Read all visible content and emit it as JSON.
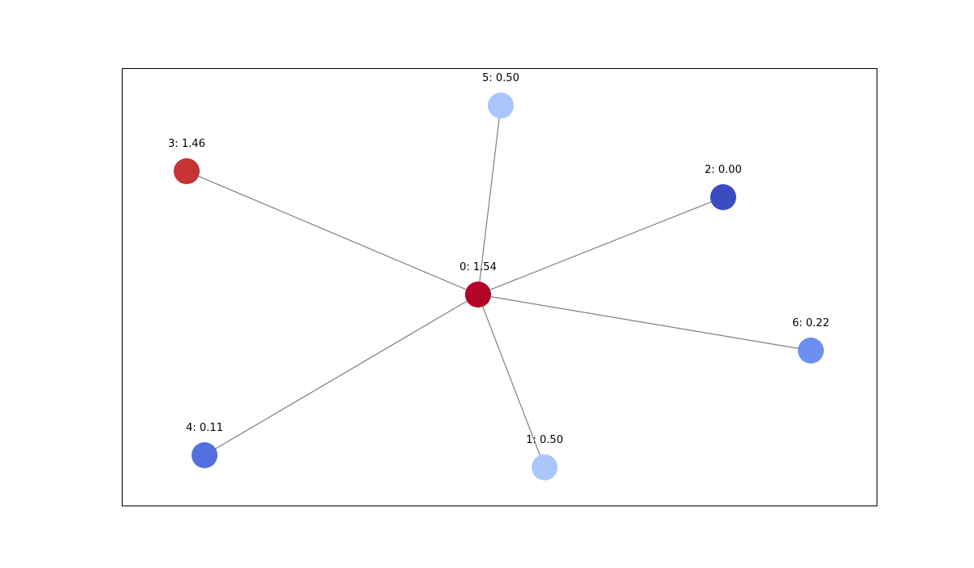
{
  "graph": {
    "nodes": [
      {
        "id": 0,
        "label": "0: 1.54",
        "value": 1.54,
        "color": "#b40426"
      },
      {
        "id": 1,
        "label": "1: 0.50",
        "value": 0.5,
        "color": "#aac7fd"
      },
      {
        "id": 2,
        "label": "2: 0.00",
        "value": 0.0,
        "color": "#3b4cc0"
      },
      {
        "id": 3,
        "label": "3: 1.46",
        "value": 1.46,
        "color": "#c53334"
      },
      {
        "id": 4,
        "label": "4: 0.11",
        "value": 0.11,
        "color": "#5470de"
      },
      {
        "id": 5,
        "label": "5: 0.50",
        "value": 0.5,
        "color": "#aac7fd"
      },
      {
        "id": 6,
        "label": "6: 0.22",
        "value": 0.22,
        "color": "#6c8ff1"
      }
    ],
    "edges": [
      {
        "source": 0,
        "target": 1
      },
      {
        "source": 0,
        "target": 2
      },
      {
        "source": 0,
        "target": 3
      },
      {
        "source": 0,
        "target": 4
      },
      {
        "source": 0,
        "target": 5
      },
      {
        "source": 0,
        "target": 6
      }
    ],
    "edge_color": "#808080",
    "frame_color": "#000000",
    "colormap": "coolwarm"
  }
}
